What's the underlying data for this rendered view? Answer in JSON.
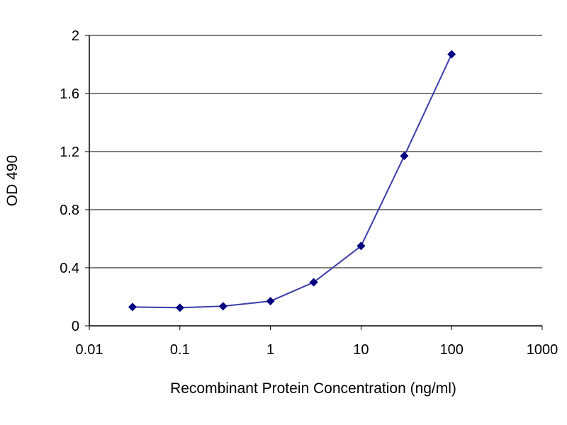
{
  "chart_data": {
    "type": "line",
    "title": "",
    "xlabel": "Recombinant Protein Concentration (ng/ml)",
    "ylabel": "OD 490",
    "x_scale": "log",
    "xlim": [
      0.01,
      1000
    ],
    "ylim": [
      0,
      2
    ],
    "x_ticks": [
      0.01,
      0.1,
      1,
      10,
      100,
      1000
    ],
    "x_tick_labels": [
      "0.01",
      "0.1",
      "1",
      "10",
      "100",
      "1000"
    ],
    "y_ticks": [
      0,
      0.4,
      0.8,
      1.2,
      1.6,
      2
    ],
    "y_tick_labels": [
      "0",
      "0.4",
      "0.8",
      "1.2",
      "1.6",
      "2"
    ],
    "grid": "horizontal",
    "legend": "none",
    "series": [
      {
        "x": [
          0.03,
          0.1,
          0.3,
          1,
          3,
          10,
          30,
          100
        ],
        "y": [
          0.13,
          0.125,
          0.135,
          0.17,
          0.3,
          0.55,
          1.17,
          1.87
        ],
        "color": "#000080",
        "marker": "diamond"
      }
    ],
    "colors": {
      "plot_background": "#ffffff",
      "grid": "#808080",
      "line": "#3c3caa",
      "marker": "#000080"
    }
  }
}
